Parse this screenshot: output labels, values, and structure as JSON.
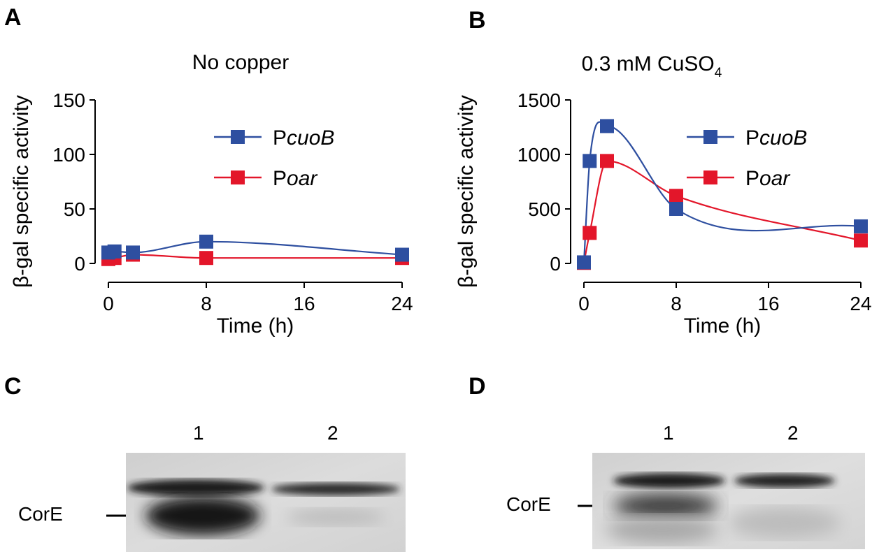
{
  "panels": {
    "A": {
      "letter": "A"
    },
    "B": {
      "letter": "B"
    },
    "C": {
      "letter": "C",
      "lanes": [
        "1",
        "2"
      ],
      "band_label": "CorE"
    },
    "D": {
      "letter": "D",
      "lanes": [
        "1",
        "2"
      ],
      "band_label": "CorE"
    }
  },
  "colors": {
    "PcuoB": "#2E4FA0",
    "Poar": "#E3162A",
    "axis": "#000000"
  },
  "chart_data": [
    {
      "type": "line",
      "title": "No copper",
      "xlabel": "Time (h)",
      "ylabel": "β-gal specific activity",
      "xlim": [
        0,
        24
      ],
      "ylim": [
        0,
        150
      ],
      "xticks": [
        "0",
        "8",
        "16",
        "24"
      ],
      "yticks": [
        "0",
        "50",
        "100",
        "150"
      ],
      "legend_position": "top-right",
      "series": [
        {
          "name": "PcuoB",
          "name_prefix": "P",
          "name_italic": "cuoB",
          "color": "#2E4FA0",
          "x": [
            0,
            0.5,
            2,
            8,
            24
          ],
          "y": [
            10,
            11,
            10,
            20,
            8
          ]
        },
        {
          "name": "Poar",
          "name_prefix": "P",
          "name_italic": "oar",
          "color": "#E3162A",
          "x": [
            0,
            0.5,
            2,
            8,
            24
          ],
          "y": [
            4,
            5,
            8,
            5,
            5
          ]
        }
      ]
    },
    {
      "type": "line",
      "title": "0.3 mM CuSO",
      "title_subscript": "4",
      "xlabel": "Time (h)",
      "ylabel": "β-gal specific activity",
      "xlim": [
        0,
        24
      ],
      "ylim": [
        0,
        1500
      ],
      "xticks": [
        "0",
        "8",
        "16",
        "24"
      ],
      "yticks": [
        "0",
        "500",
        "1000",
        "1500"
      ],
      "legend_position": "top-right",
      "series": [
        {
          "name": "PcuoB",
          "name_prefix": "P",
          "name_italic": "cuoB",
          "color": "#2E4FA0",
          "x": [
            0,
            0.5,
            2,
            8,
            24
          ],
          "y": [
            10,
            940,
            1260,
            500,
            340
          ]
        },
        {
          "name": "Poar",
          "name_prefix": "P",
          "name_italic": "oar",
          "color": "#E3162A",
          "x": [
            0,
            0.5,
            2,
            8,
            24
          ],
          "y": [
            5,
            280,
            940,
            620,
            210
          ]
        }
      ]
    }
  ]
}
